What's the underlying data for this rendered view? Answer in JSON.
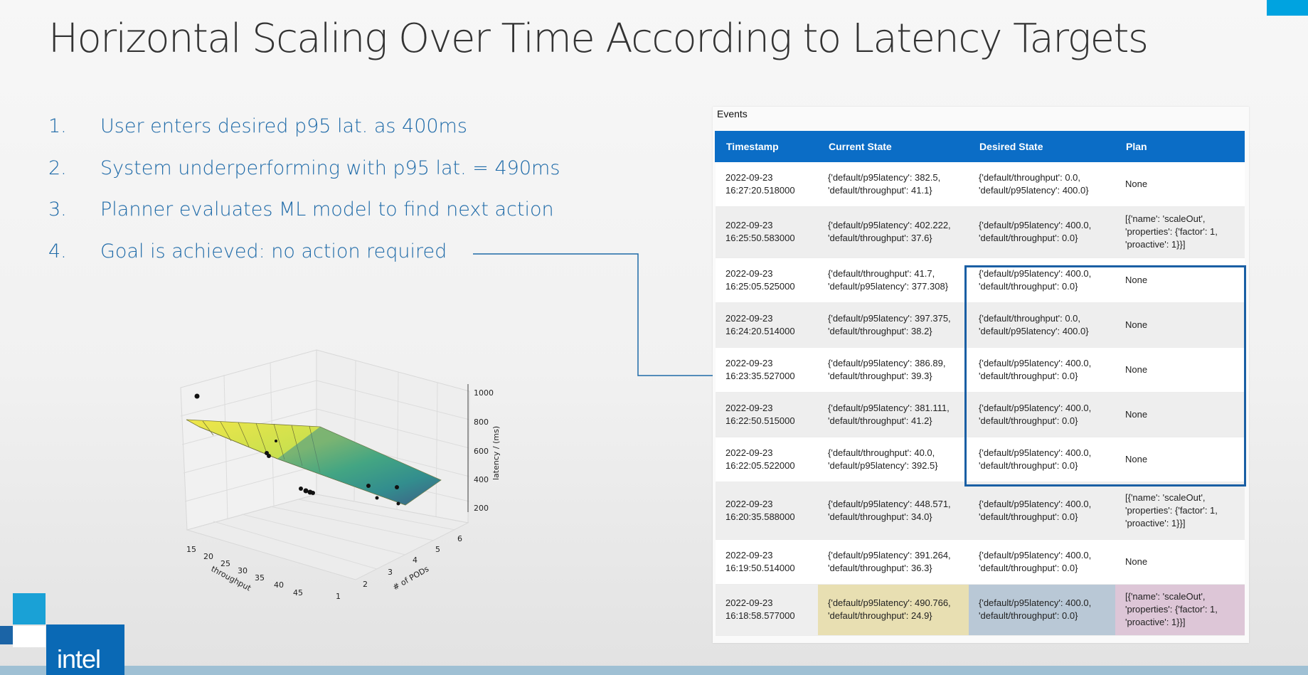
{
  "slide": {
    "title": "Horizontal Scaling Over Time According to Latency Targets",
    "brand": "intel"
  },
  "steps": [
    {
      "num": "1.",
      "text": "User enters desired p95 lat. as 400ms"
    },
    {
      "num": "2.",
      "text": "System underperforming with p95 lat. = 490ms"
    },
    {
      "num": "3.",
      "text": "Planner evaluates ML model to find next action"
    },
    {
      "num": "4.",
      "text": "Goal is achieved: no action required"
    }
  ],
  "plot": {
    "xlabel": "throughput",
    "ylabel": "# of PODs",
    "zlabel": "latency / (ms)",
    "x_ticks": [
      "15",
      "20",
      "25",
      "30",
      "35",
      "40",
      "45"
    ],
    "y_ticks": [
      "1",
      "2",
      "3",
      "4",
      "5",
      "6"
    ],
    "z_ticks": [
      "200",
      "400",
      "600",
      "800",
      "1000"
    ]
  },
  "events": {
    "title": "Events",
    "columns": [
      "Timestamp",
      "Current State",
      "Desired State",
      "Plan"
    ],
    "rows": [
      {
        "ts": "2022-09-23\n16:27:20.518000",
        "cur": "{'default/p95latency': 382.5,\n'default/throughput': 41.1}",
        "des": "{'default/throughput': 0.0,\n'default/p95latency': 400.0}",
        "plan": "None"
      },
      {
        "ts": "2022-09-23\n16:25:50.583000",
        "cur": "{'default/p95latency': 402.222,\n'default/throughput': 37.6}",
        "des": "{'default/p95latency': 400.0,\n'default/throughput': 0.0}",
        "plan": "[{'name': 'scaleOut',\n'properties': {'factor': 1,\n'proactive': 1}}]"
      },
      {
        "ts": "2022-09-23\n16:25:05.525000",
        "cur": "{'default/throughput': 41.7,\n'default/p95latency': 377.308}",
        "des": "{'default/p95latency': 400.0,\n'default/throughput': 0.0}",
        "plan": "None"
      },
      {
        "ts": "2022-09-23\n16:24:20.514000",
        "cur": "{'default/p95latency': 397.375,\n'default/throughput': 38.2}",
        "des": "{'default/throughput': 0.0,\n'default/p95latency': 400.0}",
        "plan": "None"
      },
      {
        "ts": "2022-09-23\n16:23:35.527000",
        "cur": "{'default/p95latency': 386.89,\n'default/throughput': 39.3}",
        "des": "{'default/p95latency': 400.0,\n'default/throughput': 0.0}",
        "plan": "None"
      },
      {
        "ts": "2022-09-23\n16:22:50.515000",
        "cur": "{'default/p95latency': 381.111,\n'default/throughput': 41.2}",
        "des": "{'default/p95latency': 400.0,\n'default/throughput': 0.0}",
        "plan": "None"
      },
      {
        "ts": "2022-09-23\n16:22:05.522000",
        "cur": "{'default/throughput': 40.0,\n'default/p95latency': 392.5}",
        "des": "{'default/p95latency': 400.0,\n'default/throughput': 0.0}",
        "plan": "None"
      },
      {
        "ts": "2022-09-23\n16:20:35.588000",
        "cur": "{'default/p95latency': 448.571,\n'default/throughput': 34.0}",
        "des": "{'default/p95latency': 400.0,\n'default/throughput': 0.0}",
        "plan": "[{'name': 'scaleOut',\n'properties': {'factor': 1,\n'proactive': 1}}]"
      },
      {
        "ts": "2022-09-23\n16:19:50.514000",
        "cur": "{'default/p95latency': 391.264,\n'default/throughput': 36.3}",
        "des": "{'default/p95latency': 400.0,\n'default/throughput': 0.0}",
        "plan": "None"
      },
      {
        "ts": "2022-09-23\n16:18:58.577000",
        "cur": "{'default/p95latency': 490.766,\n'default/throughput': 24.9}",
        "des": "{'default/p95latency': 400.0,\n'default/throughput': 0.0}",
        "plan": "[{'name': 'scaleOut',\n'properties': {'factor': 1,\n'proactive': 1}}]"
      }
    ]
  },
  "colors": {
    "accent": "#0b6dc6",
    "step_text": "#1e6aa8",
    "highlight_box": "#1a5fa4",
    "current_highlight": "#e8dfb2",
    "desired_highlight": "#b9c8d6",
    "plan_highlight": "#ddc6d7"
  }
}
